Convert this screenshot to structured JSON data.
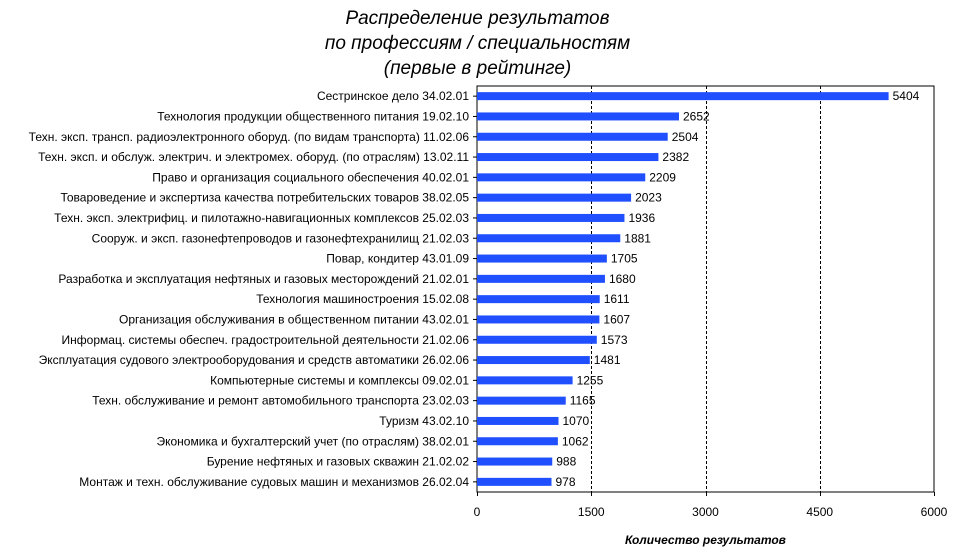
{
  "chart_data": {
    "type": "bar",
    "orientation": "horizontal",
    "title": [
      "Распределение результатов",
      "по профессиям / специальностям",
      "(первые в рейтинге)"
    ],
    "xlabel": "Количество результатов",
    "ylabel": "",
    "xlim": [
      0,
      6000
    ],
    "ticks": [
      "0",
      "1500",
      "3000",
      "4500",
      "6000"
    ],
    "grid": "vertical dashed",
    "bar_color": "#1f4fff",
    "categories": [
      "Сестринское дело 34.02.01",
      "Технология продукции общественного питания 19.02.10",
      "Техн. эксп. трансп. радиоэлектронного оборуд. (по видам транспорта) 11.02.06",
      "Техн. эксп. и обслуж. электрич. и электромех. оборуд. (по отраслям) 13.02.11",
      "Право и организация социального обеспечения 40.02.01",
      "Товароведение и экспертиза качества потребительских товаров 38.02.05",
      "Техн. эксп. электрифиц. и пилотажно-навигационных комплексов 25.02.03",
      "Сооруж. и эксп. газонефтепроводов и газонефтехранилищ 21.02.03",
      "Повар, кондитер 43.01.09",
      "Разработка и эксплуатация нефтяных и газовых месторождений 21.02.01",
      "Технология машиностроения 15.02.08",
      "Организация обслуживания в общественном питании 43.02.01",
      "Информац. системы обеспеч. градостроительной деятельности 21.02.06",
      "Эксплуатация судового электрооборудования и средств автоматики 26.02.06",
      "Компьютерные системы и комплексы 09.02.01",
      "Техн. обслуживание и ремонт автомобильного транспорта 23.02.03",
      "Туризм 43.02.10",
      "Экономика и бухгалтерский учет (по отраслям) 38.02.01",
      "Бурение нефтяных и газовых скважин 21.02.02",
      "Монтаж и техн. обслуживание судовых машин и механизмов 26.02.04"
    ],
    "values": [
      5404,
      2652,
      2504,
      2382,
      2209,
      2023,
      1936,
      1881,
      1705,
      1680,
      1611,
      1607,
      1573,
      1481,
      1255,
      1165,
      1070,
      1062,
      988,
      978
    ]
  }
}
